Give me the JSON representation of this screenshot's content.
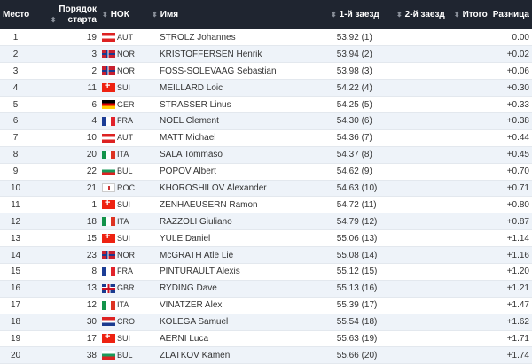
{
  "headers": {
    "place": "Место",
    "order1": "Порядок",
    "order2": "старта",
    "noc": "НОК",
    "name": "Имя",
    "run1": "1-й заезд",
    "run2": "2-й заезд",
    "total": "Итого",
    "diff": "Разница"
  },
  "rows": [
    {
      "place": "1",
      "start": "19",
      "noc": "AUT",
      "name": "STROLZ Johannes",
      "run1": "53.92 (1)",
      "diff": "0.00"
    },
    {
      "place": "2",
      "start": "3",
      "noc": "NOR",
      "name": "KRISTOFFERSEN Henrik",
      "run1": "53.94 (2)",
      "diff": "+0.02"
    },
    {
      "place": "3",
      "start": "2",
      "noc": "NOR",
      "name": "FOSS-SOLEVAAG Sebastian",
      "run1": "53.98 (3)",
      "diff": "+0.06"
    },
    {
      "place": "4",
      "start": "11",
      "noc": "SUI",
      "name": "MEILLARD Loic",
      "run1": "54.22 (4)",
      "diff": "+0.30"
    },
    {
      "place": "5",
      "start": "6",
      "noc": "GER",
      "name": "STRASSER Linus",
      "run1": "54.25 (5)",
      "diff": "+0.33"
    },
    {
      "place": "6",
      "start": "4",
      "noc": "FRA",
      "name": "NOEL Clement",
      "run1": "54.30 (6)",
      "diff": "+0.38"
    },
    {
      "place": "7",
      "start": "10",
      "noc": "AUT",
      "name": "MATT Michael",
      "run1": "54.36 (7)",
      "diff": "+0.44"
    },
    {
      "place": "8",
      "start": "20",
      "noc": "ITA",
      "name": "SALA Tommaso",
      "run1": "54.37 (8)",
      "diff": "+0.45"
    },
    {
      "place": "9",
      "start": "22",
      "noc": "BUL",
      "name": "POPOV Albert",
      "run1": "54.62 (9)",
      "diff": "+0.70"
    },
    {
      "place": "10",
      "start": "21",
      "noc": "ROC",
      "name": "KHOROSHILOV Alexander",
      "run1": "54.63 (10)",
      "diff": "+0.71"
    },
    {
      "place": "11",
      "start": "1",
      "noc": "SUI",
      "name": "ZENHAEUSERN Ramon",
      "run1": "54.72 (11)",
      "diff": "+0.80"
    },
    {
      "place": "12",
      "start": "18",
      "noc": "ITA",
      "name": "RAZZOLI Giuliano",
      "run1": "54.79 (12)",
      "diff": "+0.87"
    },
    {
      "place": "13",
      "start": "15",
      "noc": "SUI",
      "name": "YULE Daniel",
      "run1": "55.06 (13)",
      "diff": "+1.14"
    },
    {
      "place": "14",
      "start": "23",
      "noc": "NOR",
      "name": "McGRATH Atle Lie",
      "run1": "55.08 (14)",
      "diff": "+1.16"
    },
    {
      "place": "15",
      "start": "8",
      "noc": "FRA",
      "name": "PINTURAULT Alexis",
      "run1": "55.12 (15)",
      "diff": "+1.20"
    },
    {
      "place": "16",
      "start": "13",
      "noc": "GBR",
      "name": "RYDING Dave",
      "run1": "55.13 (16)",
      "diff": "+1.21"
    },
    {
      "place": "17",
      "start": "12",
      "noc": "ITA",
      "name": "VINATZER Alex",
      "run1": "55.39 (17)",
      "diff": "+1.47"
    },
    {
      "place": "18",
      "start": "30",
      "noc": "CRO",
      "name": "KOLEGA Samuel",
      "run1": "55.54 (18)",
      "diff": "+1.62"
    },
    {
      "place": "19",
      "start": "17",
      "noc": "SUI",
      "name": "AERNI Luca",
      "run1": "55.63 (19)",
      "diff": "+1.71"
    },
    {
      "place": "20",
      "start": "38",
      "noc": "BUL",
      "name": "ZLATKOV Kamen",
      "run1": "55.66 (20)",
      "diff": "+1.74"
    }
  ]
}
